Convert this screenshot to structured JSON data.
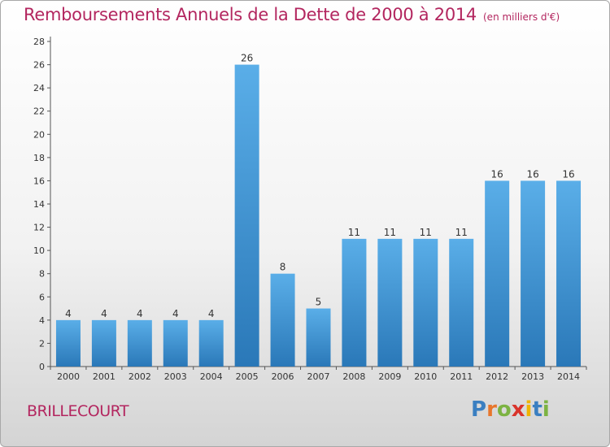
{
  "header": {
    "title": "Remboursements Annuels de la Dette de 2000 à 2014",
    "subtitle": "(en milliers d'€)"
  },
  "footer": {
    "commune": "BRILLECOURT",
    "logo_letters": [
      "P",
      "r",
      "o",
      "x",
      "i",
      "t",
      "i"
    ],
    "logo_colors": [
      "#3a7fc1",
      "#e8762c",
      "#7cb342",
      "#d9342b",
      "#f0b400",
      "#3a7fc1",
      "#7cb342"
    ]
  },
  "colors": {
    "title": "#b3265f",
    "bar_top": "#5aaee8",
    "bar_bottom": "#2a78b8",
    "axis": "#555555",
    "grid": "#bbbbbb"
  },
  "chart_data": {
    "type": "bar",
    "categories": [
      "2000",
      "2001",
      "2002",
      "2003",
      "2004",
      "2005",
      "2006",
      "2007",
      "2008",
      "2009",
      "2010",
      "2011",
      "2012",
      "2013",
      "2014"
    ],
    "values": [
      4,
      4,
      4,
      4,
      4,
      26,
      8,
      5,
      11,
      11,
      11,
      11,
      16,
      16,
      16
    ],
    "title": "Remboursements Annuels de la Dette de 2000 à 2014",
    "xlabel": "",
    "ylabel": "",
    "ylim": [
      0,
      28
    ],
    "yticks": [
      0,
      2,
      4,
      6,
      8,
      10,
      12,
      14,
      16,
      18,
      20,
      22,
      24,
      26,
      28
    ],
    "grid": false,
    "legend": "none"
  }
}
